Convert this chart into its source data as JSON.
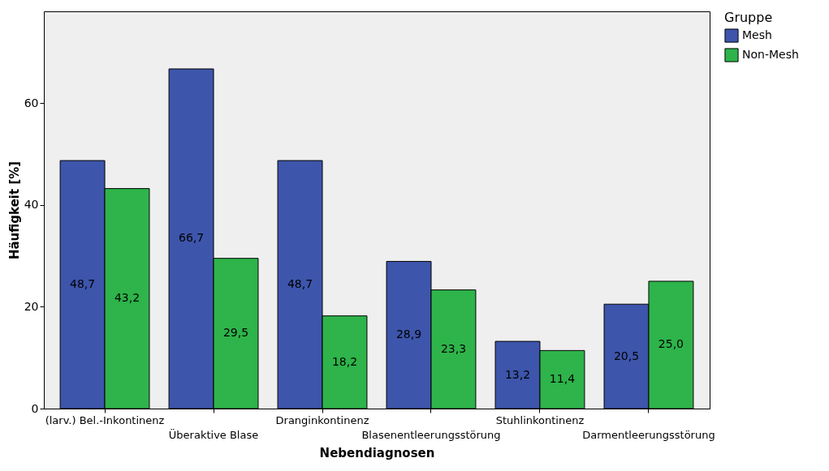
{
  "chart_data": {
    "type": "bar",
    "xlabel": "Nebendiagnosen",
    "ylabel": "Häufigkeit [%]",
    "legend_title": "Gruppe",
    "categories": [
      "(larv.) Bel.-Inkontinenz",
      "Überaktive Blase",
      "Dranginkontinenz",
      "Blasenentleerungsstörung",
      "Stuhlinkontinenz",
      "Darmentleerungsstörung"
    ],
    "series": [
      {
        "name": "Mesh",
        "color": "#3d55ab",
        "values": [
          48.7,
          66.7,
          48.7,
          28.9,
          13.2,
          20.5
        ],
        "value_labels": [
          "48,7",
          "66,7",
          "48,7",
          "28,9",
          "13,2",
          "20,5"
        ]
      },
      {
        "name": "Non-Mesh",
        "color": "#2eb44a",
        "values": [
          43.2,
          29.5,
          18.2,
          23.3,
          11.4,
          25.0
        ],
        "value_labels": [
          "43,2",
          "29,5",
          "18,2",
          "23,3",
          "11,4",
          "25,0"
        ]
      }
    ],
    "ylim": [
      0,
      78
    ],
    "yticks": [
      0,
      20,
      40,
      60
    ],
    "grid": false,
    "legend": "top right"
  }
}
